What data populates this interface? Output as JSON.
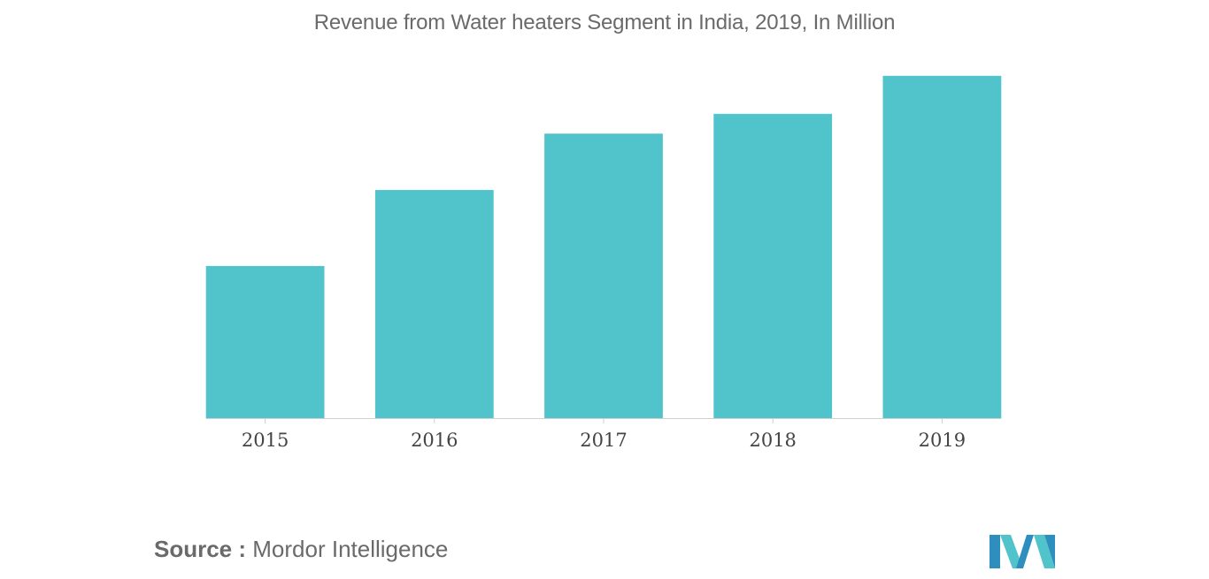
{
  "chart_data": {
    "type": "bar",
    "title": "Revenue from Water heaters Segment in India, 2019, In Million",
    "categories": [
      "2015",
      "2016",
      "2017",
      "2018",
      "2019"
    ],
    "values": [
      50,
      75,
      93.5,
      100,
      112.5
    ],
    "ylim": [
      0,
      120
    ],
    "xlabel": "",
    "ylabel": "",
    "grid": false,
    "bar_color": "#50C4CA"
  },
  "source": {
    "label": "Source :",
    "name": "Mordor Intelligence"
  },
  "logo": {
    "icon": "mordor-intelligence-logo-icon",
    "colors": [
      "#2E8FBF",
      "#50C4CA"
    ]
  }
}
